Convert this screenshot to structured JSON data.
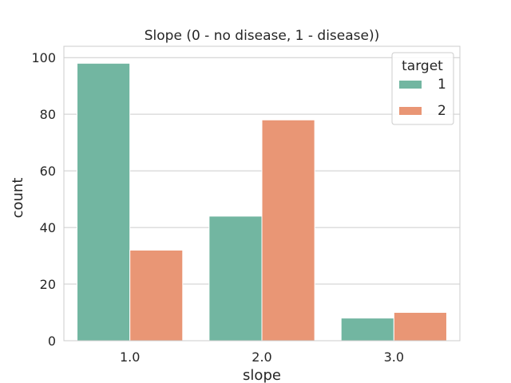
{
  "chart_data": {
    "type": "bar",
    "title": "Slope (0 - no disease, 1 - disease))",
    "xlabel": "slope",
    "ylabel": "count",
    "categories": [
      "1.0",
      "2.0",
      "3.0"
    ],
    "series": [
      {
        "name": "1",
        "values": [
          98,
          44,
          8
        ],
        "color": "#72b6a1"
      },
      {
        "name": "2",
        "values": [
          32,
          78,
          10
        ],
        "color": "#e99675"
      }
    ],
    "ylim": [
      0,
      104
    ],
    "yticks": [
      0,
      20,
      40,
      60,
      80,
      100
    ],
    "grid": "horizontal",
    "legend": {
      "title": "target",
      "placement": "top-right"
    }
  }
}
